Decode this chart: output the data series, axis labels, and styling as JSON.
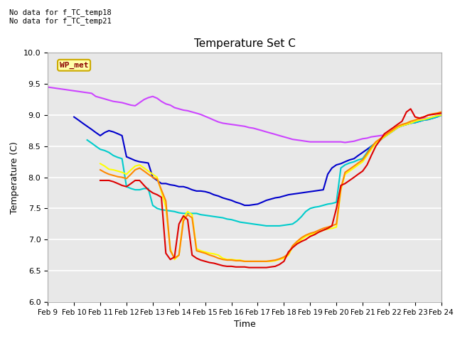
{
  "title": "Temperature Set C",
  "xlabel": "Time",
  "ylabel": "Temperature (C)",
  "annotations": [
    "No data for f_TC_temp18",
    "No data for f_TC_temp21"
  ],
  "wp_met_label": "WP_met",
  "ylim": [
    6.0,
    10.0
  ],
  "yticks": [
    6.0,
    6.5,
    7.0,
    7.5,
    8.0,
    8.5,
    9.0,
    9.5,
    10.0
  ],
  "x_labels": [
    "Feb 9",
    "Feb 10",
    "Feb 11",
    "Feb 12",
    "Feb 13",
    "Feb 14",
    "Feb 15",
    "Feb 16",
    "Feb 17",
    "Feb 18",
    "Feb 19",
    "Feb 20",
    "Feb 21",
    "Feb 22",
    "Feb 23",
    "Feb 24"
  ],
  "background_color": "#e8e8e8",
  "grid_color": "#ffffff",
  "fig_background": "#ffffff",
  "series": {
    "TC_C -32cm": {
      "color": "#cc44ff",
      "x": [
        0.0,
        0.17,
        0.33,
        0.5,
        0.67,
        0.83,
        1.0,
        1.17,
        1.33,
        1.5,
        1.67,
        1.83,
        2.0,
        2.17,
        2.33,
        2.5,
        2.67,
        2.83,
        3.0,
        3.17,
        3.33,
        3.5,
        3.67,
        3.83,
        4.0,
        4.17,
        4.33,
        4.5,
        4.67,
        4.83,
        5.0,
        5.17,
        5.33,
        5.5,
        5.67,
        5.83,
        6.0,
        6.17,
        6.33,
        6.5,
        6.67,
        6.83,
        7.0,
        7.17,
        7.33,
        7.5,
        7.67,
        7.83,
        8.0,
        8.17,
        8.33,
        8.5,
        8.67,
        8.83,
        9.0,
        9.17,
        9.33,
        9.5,
        9.67,
        9.83,
        10.0,
        10.17,
        10.33,
        10.5,
        10.67,
        10.83,
        11.0,
        11.17,
        11.33,
        11.5,
        11.67,
        11.83,
        12.0,
        12.17,
        12.33,
        12.5,
        12.67,
        12.83,
        13.0,
        13.17,
        13.33,
        13.5,
        13.67,
        13.83,
        14.0,
        14.17,
        14.33,
        14.5,
        14.67,
        14.83,
        15.0
      ],
      "y": [
        9.45,
        9.44,
        9.43,
        9.42,
        9.41,
        9.4,
        9.39,
        9.38,
        9.37,
        9.36,
        9.35,
        9.3,
        9.28,
        9.26,
        9.24,
        9.22,
        9.21,
        9.2,
        9.18,
        9.16,
        9.15,
        9.2,
        9.25,
        9.28,
        9.3,
        9.27,
        9.22,
        9.18,
        9.16,
        9.12,
        9.1,
        9.08,
        9.07,
        9.05,
        9.03,
        9.01,
        8.98,
        8.95,
        8.92,
        8.89,
        8.87,
        8.86,
        8.85,
        8.84,
        8.83,
        8.82,
        8.8,
        8.79,
        8.77,
        8.75,
        8.73,
        8.71,
        8.69,
        8.67,
        8.65,
        8.63,
        8.61,
        8.6,
        8.59,
        8.58,
        8.57,
        8.57,
        8.57,
        8.57,
        8.57,
        8.57,
        8.57,
        8.57,
        8.56,
        8.57,
        8.58,
        8.6,
        8.62,
        8.63,
        8.65,
        8.66,
        8.67,
        8.68,
        8.7,
        8.75,
        8.8,
        8.83,
        8.85,
        8.87,
        8.9,
        8.93,
        8.95,
        8.95,
        8.97,
        8.99,
        9.0
      ]
    },
    "TC_C -8cm": {
      "color": "#0000cc",
      "x": [
        1.0,
        1.17,
        1.33,
        1.5,
        1.67,
        1.83,
        2.0,
        2.17,
        2.33,
        2.5,
        2.67,
        2.83,
        3.0,
        3.17,
        3.33,
        3.5,
        3.67,
        3.83,
        4.0,
        4.17,
        4.33,
        4.5,
        4.67,
        4.83,
        5.0,
        5.17,
        5.33,
        5.5,
        5.67,
        5.83,
        6.0,
        6.17,
        6.33,
        6.5,
        6.67,
        6.83,
        7.0,
        7.17,
        7.33,
        7.5,
        7.67,
        7.83,
        8.0,
        8.17,
        8.33,
        8.5,
        8.67,
        8.83,
        9.0,
        9.17,
        9.33,
        9.5,
        9.67,
        9.83,
        10.0,
        10.17,
        10.33,
        10.5,
        10.67,
        10.83,
        11.0,
        11.17,
        11.33,
        11.5,
        11.67,
        11.83,
        12.0,
        12.17,
        12.33,
        12.5,
        12.67,
        12.83,
        13.0,
        13.17,
        13.33,
        13.5,
        13.67,
        13.83,
        14.0,
        14.17,
        14.33,
        14.5,
        14.67,
        14.83,
        15.0
      ],
      "y": [
        8.97,
        8.92,
        8.87,
        8.82,
        8.77,
        8.72,
        8.67,
        8.72,
        8.75,
        8.73,
        8.7,
        8.67,
        8.33,
        8.3,
        8.27,
        8.25,
        8.24,
        8.23,
        8.0,
        7.95,
        7.9,
        7.9,
        7.88,
        7.87,
        7.85,
        7.85,
        7.83,
        7.8,
        7.78,
        7.78,
        7.77,
        7.75,
        7.72,
        7.7,
        7.67,
        7.65,
        7.63,
        7.6,
        7.58,
        7.55,
        7.55,
        7.56,
        7.57,
        7.6,
        7.63,
        7.65,
        7.67,
        7.68,
        7.7,
        7.72,
        7.73,
        7.74,
        7.75,
        7.76,
        7.77,
        7.78,
        7.79,
        7.8,
        8.05,
        8.15,
        8.2,
        8.22,
        8.25,
        8.28,
        8.3,
        8.35,
        8.4,
        8.45,
        8.5,
        8.55,
        8.6,
        8.65,
        8.7,
        8.75,
        8.8,
        8.83,
        8.85,
        8.87,
        8.88,
        8.9,
        8.92,
        8.93,
        8.95,
        8.97,
        9.0
      ]
    },
    "TC_C -4cm": {
      "color": "#00cccc",
      "x": [
        1.5,
        1.67,
        1.83,
        2.0,
        2.17,
        2.33,
        2.5,
        2.67,
        2.83,
        3.0,
        3.17,
        3.33,
        3.5,
        3.67,
        3.83,
        4.0,
        4.17,
        4.33,
        4.5,
        4.67,
        4.83,
        5.0,
        5.17,
        5.33,
        5.5,
        5.67,
        5.83,
        6.0,
        6.17,
        6.33,
        6.5,
        6.67,
        6.83,
        7.0,
        7.17,
        7.33,
        7.5,
        7.67,
        7.83,
        8.0,
        8.17,
        8.33,
        8.5,
        8.67,
        8.83,
        9.0,
        9.17,
        9.33,
        9.5,
        9.67,
        9.83,
        10.0,
        10.17,
        10.33,
        10.5,
        10.67,
        10.83,
        11.0,
        11.17,
        11.33,
        11.5,
        11.67,
        11.83,
        12.0,
        12.17,
        12.33,
        12.5,
        12.67,
        12.83,
        13.0,
        13.17,
        13.33,
        13.5,
        13.67,
        13.83,
        14.0,
        14.17,
        14.33,
        14.5,
        14.67,
        14.83,
        15.0
      ],
      "y": [
        8.6,
        8.55,
        8.5,
        8.45,
        8.43,
        8.4,
        8.35,
        8.32,
        8.3,
        7.85,
        7.82,
        7.8,
        7.8,
        7.82,
        7.82,
        7.55,
        7.5,
        7.48,
        7.47,
        7.46,
        7.45,
        7.43,
        7.42,
        7.42,
        7.42,
        7.42,
        7.4,
        7.39,
        7.38,
        7.37,
        7.36,
        7.35,
        7.33,
        7.32,
        7.3,
        7.28,
        7.27,
        7.26,
        7.25,
        7.24,
        7.23,
        7.22,
        7.22,
        7.22,
        7.22,
        7.23,
        7.24,
        7.25,
        7.3,
        7.37,
        7.45,
        7.5,
        7.52,
        7.53,
        7.55,
        7.57,
        7.58,
        7.6,
        8.15,
        8.2,
        8.23,
        8.25,
        8.28,
        8.3,
        8.4,
        8.5,
        8.55,
        8.6,
        8.65,
        8.7,
        8.75,
        8.8,
        8.83,
        8.85,
        8.87,
        8.88,
        8.9,
        8.92,
        8.93,
        8.95,
        8.97,
        9.0
      ]
    },
    "TC_C +4cm": {
      "color": "#ffff00",
      "x": [
        2.0,
        2.17,
        2.33,
        2.5,
        2.67,
        2.83,
        3.0,
        3.17,
        3.33,
        3.5,
        3.67,
        3.83,
        4.0,
        4.17,
        4.5,
        4.67,
        4.83,
        5.0,
        5.17,
        5.33,
        5.5,
        5.67,
        5.83,
        6.0,
        6.17,
        6.33,
        6.5,
        6.67,
        6.83,
        7.0,
        7.17,
        7.33,
        7.5,
        7.67,
        7.83,
        8.0,
        8.17,
        8.33,
        8.5,
        8.67,
        8.83,
        9.0,
        9.17,
        9.33,
        9.5,
        9.67,
        9.83,
        10.0,
        10.17,
        10.33,
        10.5,
        10.67,
        10.83,
        11.0,
        11.17,
        11.33,
        11.5,
        11.67,
        11.83,
        12.0,
        12.17,
        12.33,
        12.5,
        12.67,
        12.83,
        13.0,
        13.17,
        13.33,
        13.5,
        13.67,
        13.83,
        14.0,
        14.17,
        14.33,
        14.5,
        14.67,
        14.83,
        15.0
      ],
      "y": [
        8.22,
        8.18,
        8.13,
        8.12,
        8.1,
        8.08,
        8.05,
        8.12,
        8.18,
        8.2,
        8.15,
        8.1,
        8.05,
        8.0,
        7.52,
        6.85,
        6.68,
        6.75,
        7.35,
        7.45,
        7.4,
        6.85,
        6.82,
        6.8,
        6.78,
        6.77,
        6.75,
        6.7,
        6.68,
        6.68,
        6.67,
        6.67,
        6.65,
        6.65,
        6.65,
        6.65,
        6.65,
        6.65,
        6.65,
        6.66,
        6.68,
        6.7,
        6.75,
        6.88,
        6.95,
        7.0,
        7.05,
        7.08,
        7.1,
        7.12,
        7.15,
        7.17,
        7.18,
        7.2,
        7.8,
        8.05,
        8.1,
        8.15,
        8.2,
        8.25,
        8.35,
        8.45,
        8.55,
        8.6,
        8.65,
        8.7,
        8.75,
        8.8,
        8.83,
        8.85,
        8.87,
        8.9,
        8.92,
        8.93,
        8.95,
        8.97,
        8.99,
        9.0
      ]
    },
    "TC_C +8cm": {
      "color": "#ff8800",
      "x": [
        2.0,
        2.17,
        2.33,
        2.5,
        2.67,
        2.83,
        3.0,
        3.17,
        3.33,
        3.5,
        3.67,
        3.83,
        4.0,
        4.17,
        4.5,
        4.67,
        4.83,
        5.0,
        5.17,
        5.33,
        5.5,
        5.67,
        5.83,
        6.0,
        6.17,
        6.33,
        6.5,
        6.67,
        6.83,
        7.0,
        7.17,
        7.33,
        7.5,
        7.67,
        7.83,
        8.0,
        8.17,
        8.33,
        8.5,
        8.67,
        8.83,
        9.0,
        9.17,
        9.33,
        9.5,
        9.67,
        9.83,
        10.0,
        10.17,
        10.33,
        10.5,
        10.67,
        10.83,
        11.0,
        11.17,
        11.33,
        11.5,
        11.67,
        11.83,
        12.0,
        12.17,
        12.33,
        12.5,
        12.67,
        12.83,
        13.0,
        13.17,
        13.33,
        13.5,
        13.67,
        13.83,
        14.0,
        14.17,
        14.33,
        14.5,
        14.67,
        14.83,
        15.0
      ],
      "y": [
        8.12,
        8.08,
        8.05,
        8.03,
        8.01,
        8.0,
        7.98,
        8.05,
        8.12,
        8.15,
        8.1,
        8.05,
        8.0,
        7.97,
        7.62,
        6.82,
        6.7,
        6.75,
        7.3,
        7.4,
        7.35,
        6.82,
        6.8,
        6.78,
        6.75,
        6.73,
        6.7,
        6.68,
        6.67,
        6.67,
        6.66,
        6.66,
        6.65,
        6.65,
        6.65,
        6.65,
        6.65,
        6.65,
        6.66,
        6.67,
        6.69,
        6.72,
        6.77,
        6.9,
        6.97,
        7.03,
        7.07,
        7.1,
        7.12,
        7.15,
        7.18,
        7.2,
        7.22,
        7.25,
        7.82,
        8.08,
        8.13,
        8.18,
        8.23,
        8.28,
        8.38,
        8.48,
        8.57,
        8.62,
        8.67,
        8.72,
        8.77,
        8.82,
        8.85,
        8.87,
        8.9,
        8.92,
        8.95,
        8.97,
        9.0,
        9.02,
        9.03,
        9.05
      ]
    },
    "TC_C +12cm": {
      "color": "#dd0000",
      "x": [
        2.0,
        2.17,
        2.33,
        2.5,
        2.67,
        2.83,
        3.0,
        3.17,
        3.33,
        3.5,
        3.67,
        3.83,
        4.0,
        4.17,
        4.33,
        4.5,
        4.67,
        4.83,
        5.0,
        5.17,
        5.33,
        5.5,
        5.67,
        5.83,
        6.0,
        6.17,
        6.33,
        6.5,
        6.67,
        6.83,
        7.0,
        7.17,
        7.33,
        7.5,
        7.67,
        7.83,
        8.0,
        8.17,
        8.33,
        8.5,
        8.67,
        8.83,
        9.0,
        9.17,
        9.33,
        9.5,
        9.67,
        9.83,
        10.0,
        10.17,
        10.33,
        10.5,
        10.67,
        10.83,
        11.0,
        11.17,
        11.33,
        11.5,
        11.67,
        11.83,
        12.0,
        12.17,
        12.33,
        12.5,
        12.67,
        12.83,
        13.0,
        13.17,
        13.33,
        13.5,
        13.67,
        13.83,
        14.0,
        14.17,
        14.33,
        14.5,
        14.67,
        14.83,
        15.0
      ],
      "y": [
        7.95,
        7.95,
        7.95,
        7.93,
        7.9,
        7.87,
        7.85,
        7.9,
        7.95,
        7.95,
        7.87,
        7.8,
        7.75,
        7.72,
        7.68,
        6.78,
        6.68,
        6.72,
        7.25,
        7.38,
        7.32,
        6.75,
        6.7,
        6.67,
        6.65,
        6.63,
        6.62,
        6.6,
        6.58,
        6.57,
        6.57,
        6.56,
        6.56,
        6.56,
        6.55,
        6.55,
        6.55,
        6.55,
        6.55,
        6.56,
        6.57,
        6.6,
        6.65,
        6.8,
        6.87,
        6.93,
        6.97,
        7.0,
        7.05,
        7.08,
        7.12,
        7.15,
        7.18,
        7.22,
        7.5,
        7.87,
        7.9,
        7.95,
        8.0,
        8.05,
        8.1,
        8.2,
        8.35,
        8.5,
        8.6,
        8.7,
        8.75,
        8.8,
        8.85,
        8.9,
        9.05,
        9.1,
        8.97,
        8.95,
        8.97,
        9.0,
        9.01,
        9.02,
        9.03
      ]
    }
  }
}
